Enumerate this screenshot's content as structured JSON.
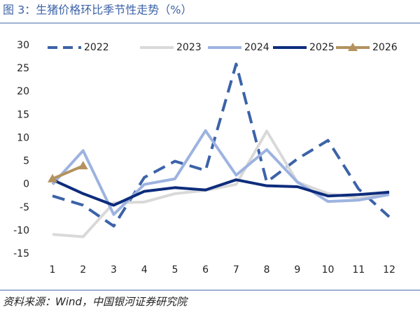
{
  "title": "图 3：生猪价格环比季节性走势（%）",
  "source": "资料来源：Wind，中国银河证券研究院",
  "chart_data": {
    "type": "line",
    "categories": [
      "1",
      "2",
      "3",
      "4",
      "5",
      "6",
      "7",
      "8",
      "9",
      "10",
      "11",
      "12"
    ],
    "series": [
      {
        "name": "2022",
        "color": "#3c63a8",
        "dashed": true,
        "values": [
          -2.5,
          -4.5,
          -9,
          1.5,
          5,
          3,
          26,
          0.5,
          5.5,
          9.5,
          -1,
          -7
        ]
      },
      {
        "name": "2023",
        "color": "#d9d9d9",
        "values": [
          -10.8,
          -11.3,
          -4,
          -3.8,
          -2,
          -1.3,
          0,
          11.5,
          0.5,
          -2,
          -3,
          -1.5
        ]
      },
      {
        "name": "2024",
        "color": "#9db3e0",
        "values": [
          0,
          7.3,
          -6.5,
          0,
          1.2,
          11.6,
          2,
          7.5,
          0.5,
          -3.7,
          -3.4,
          -2.2
        ]
      },
      {
        "name": "2025",
        "color": "#0d2c7c",
        "values": [
          1,
          -2,
          -4.5,
          -1.5,
          -0.7,
          -1.2,
          1,
          -0.3,
          -0.5,
          -2.5,
          -2.2,
          -1.7
        ]
      },
      {
        "name": "2026",
        "color": "#b4925e",
        "marker": "triangle",
        "values": [
          1.2,
          4,
          null,
          null,
          null,
          null,
          null,
          null,
          null,
          null,
          null,
          null
        ]
      }
    ],
    "ylim": [
      -15,
      30
    ],
    "yticks": [
      -15,
      -10,
      -5,
      0,
      5,
      10,
      15,
      20,
      25,
      30
    ],
    "legend": "top"
  }
}
